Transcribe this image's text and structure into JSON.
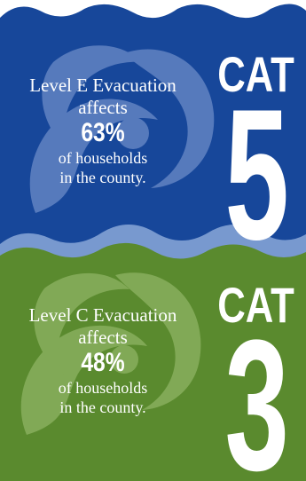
{
  "colors": {
    "top_blue": "#17479a",
    "bottom_green": "#5a8a2e",
    "swirl_blue": "#6c8bc8",
    "swirl_green": "#8fb464",
    "text": "#ffffff"
  },
  "top": {
    "line1": "Level E Evacuation",
    "line2": "affects",
    "percent": "63%",
    "line3": "of households",
    "line4": "in the county.",
    "cat_word": "CAT",
    "cat_number": "5"
  },
  "bottom": {
    "line1": "Level C Evacuation",
    "line2": "affects",
    "percent": "48%",
    "line3": "of households",
    "line4": "in the county.",
    "cat_word": "CAT",
    "cat_number": "3"
  }
}
